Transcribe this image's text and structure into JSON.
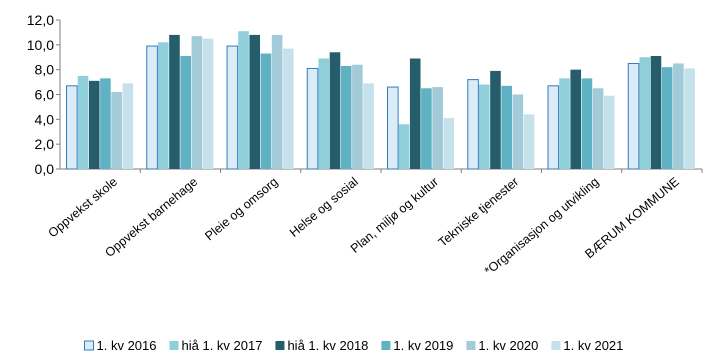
{
  "chart_data": {
    "type": "bar",
    "ylim": [
      0,
      12
    ],
    "yticks": [
      "0,0",
      "2,0",
      "4,0",
      "6,0",
      "8,0",
      "10,0",
      "12,0"
    ],
    "grid": false,
    "legend_position": "bottom",
    "categories": [
      "Oppvekst skole",
      "Oppvekst barnehage",
      "Pleie og omsorg",
      "Helse og sosial",
      "Plan, miljø og kultur",
      "Tekniske tjenester",
      "*Organisasjon og utvikling",
      "BÆRUM KOMMUNE"
    ],
    "series": [
      {
        "name": "1. kv 2016",
        "color": "#dcecf7",
        "border": "#2f7bbd",
        "values": [
          6.7,
          9.9,
          9.9,
          8.1,
          6.6,
          7.2,
          6.7,
          8.5
        ]
      },
      {
        "name": "hiå 1. kv 2017",
        "color": "#8ecfd9",
        "border": "",
        "values": [
          7.5,
          10.2,
          11.1,
          8.9,
          3.6,
          6.8,
          7.3,
          9.0
        ]
      },
      {
        "name": "hiå 1. kv 2018",
        "color": "#265d6d",
        "border": "",
        "values": [
          7.1,
          10.8,
          10.8,
          9.4,
          8.9,
          7.9,
          8.0,
          9.1
        ]
      },
      {
        "name": "1. kv 2019",
        "color": "#5fb1c4",
        "border": "",
        "values": [
          7.3,
          9.1,
          9.3,
          8.3,
          6.5,
          6.7,
          7.3,
          8.2
        ]
      },
      {
        "name": "1. kv 2020",
        "color": "#a2cad8",
        "border": "",
        "values": [
          6.2,
          10.7,
          10.8,
          8.4,
          6.6,
          6.0,
          6.5,
          8.5
        ]
      },
      {
        "name": "1. kv 2021",
        "color": "#c5e2ec",
        "border": "",
        "values": [
          6.9,
          10.5,
          9.7,
          6.9,
          4.1,
          4.4,
          5.9,
          8.1
        ]
      }
    ]
  }
}
